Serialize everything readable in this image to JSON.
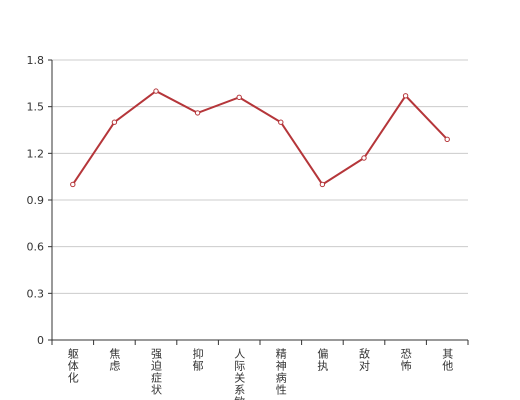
{
  "chart_data": {
    "type": "line",
    "categories": [
      "躯体化",
      "焦虑",
      "强迫症状",
      "抑郁",
      "人际关系敏感",
      "精神病性",
      "偏执",
      "敌对",
      "恐怖",
      "其他"
    ],
    "values": [
      1.0,
      1.4,
      1.6,
      1.46,
      1.56,
      1.4,
      1.0,
      1.17,
      1.57,
      1.29
    ],
    "color": "#b5363a",
    "ylim": [
      0,
      1.8
    ],
    "yticks": [
      0,
      0.3,
      0.6,
      0.9,
      1.2,
      1.5,
      1.8
    ],
    "grid": true
  }
}
